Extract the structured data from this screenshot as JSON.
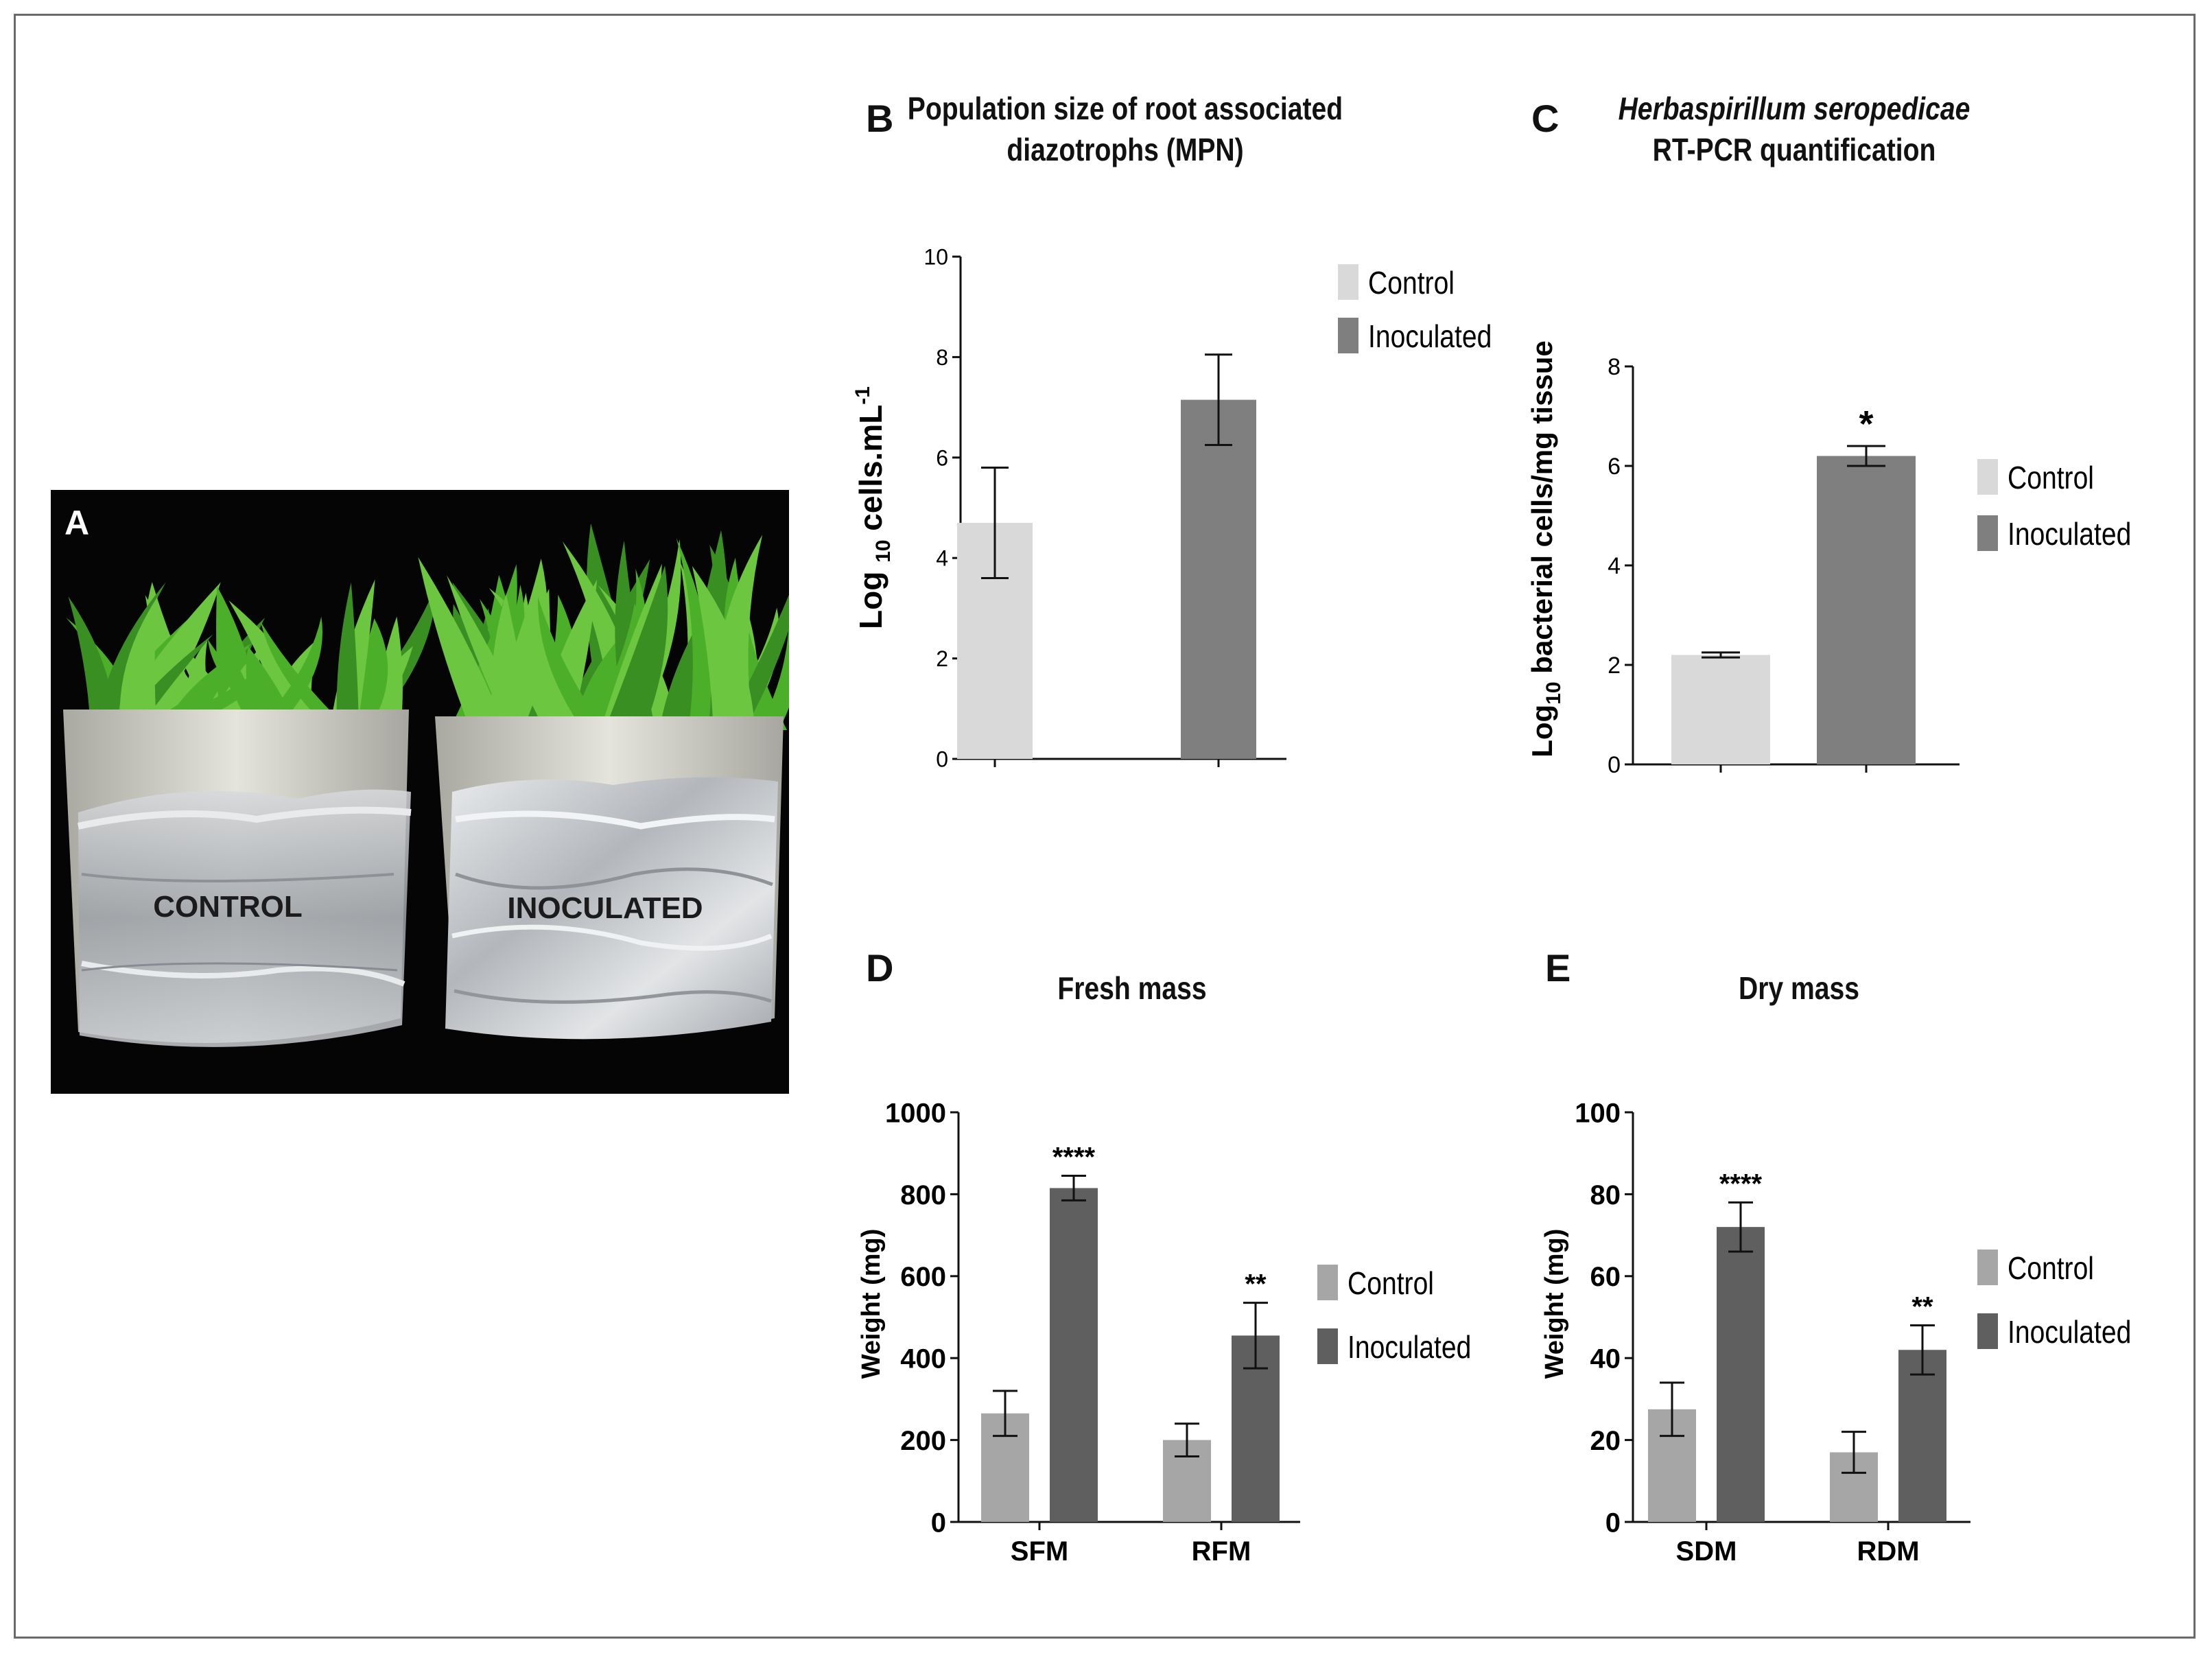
{
  "figure": {
    "panel_a": {
      "letter": "A",
      "pot_left_label": "CONTROL",
      "pot_right_label": "INOCULATED"
    },
    "colors": {
      "light_control": "#d9d9d9",
      "mid_inoculated": "#7f7f7f",
      "control": "#a6a6a6",
      "inoculated": "#5f5f5f",
      "leaf": "#4caf2a",
      "pot": "#d8d8cf",
      "foil": "#b9bcc0"
    }
  },
  "chart_data": [
    {
      "panel": "B",
      "type": "bar",
      "title_line1": "Population size of root associated",
      "title_line2": "diazotrophs (MPN)",
      "ylabel": "Log 10 cells.mL-1",
      "ylabel_parts": {
        "a": "Log ",
        "sub": "10",
        "b": " cells.mL",
        "sup": "-1"
      },
      "categories": [
        ""
      ],
      "series": [
        {
          "name": "Control",
          "values": [
            4.7
          ],
          "errors": [
            1.1
          ]
        },
        {
          "name": "Inoculated",
          "values": [
            7.15
          ],
          "errors": [
            0.9
          ]
        }
      ],
      "ylim": [
        0,
        10
      ],
      "yticks": [
        0,
        2,
        4,
        6,
        8,
        10
      ],
      "annotations": [],
      "legend": [
        "Control",
        "Inoculated"
      ],
      "legend_position": "top-right"
    },
    {
      "panel": "C",
      "type": "bar",
      "title_italic": "Herbaspirillum seropedicae",
      "title_line2": "RT-PCR quantification",
      "ylabel": "Log10 bacterial cells/mg tissue",
      "ylabel_parts": {
        "a": "Log",
        "sub": "10",
        "b": " bacterial cells/mg tissue",
        "sup": ""
      },
      "categories": [
        ""
      ],
      "series": [
        {
          "name": "Control",
          "values": [
            2.2
          ],
          "errors": [
            0.05
          ]
        },
        {
          "name": "Inoculated",
          "values": [
            6.2
          ],
          "errors": [
            0.2
          ]
        }
      ],
      "ylim": [
        0,
        8
      ],
      "yticks": [
        0,
        2,
        4,
        6,
        8
      ],
      "annotations": [
        "",
        "*"
      ],
      "legend": [
        "Control",
        "Inoculated"
      ],
      "legend_position": "right"
    },
    {
      "panel": "D",
      "type": "bar",
      "title": "Fresh mass",
      "ylabel": "Weight (mg)",
      "categories": [
        "SFM",
        "RFM"
      ],
      "series": [
        {
          "name": "Control",
          "values": [
            265,
            200
          ],
          "errors": [
            55,
            40
          ]
        },
        {
          "name": "Inoculated",
          "values": [
            815,
            455
          ],
          "errors": [
            30,
            80
          ]
        }
      ],
      "ylim": [
        0,
        1000
      ],
      "yticks": [
        0,
        200,
        400,
        600,
        800,
        1000
      ],
      "annotations": [
        "****",
        "**"
      ],
      "legend": [
        "Control",
        "Inoculated"
      ],
      "legend_position": "right"
    },
    {
      "panel": "E",
      "type": "bar",
      "title": "Dry mass",
      "ylabel": "Weight (mg)",
      "categories": [
        "SDM",
        "RDM"
      ],
      "series": [
        {
          "name": "Control",
          "values": [
            27.5,
            17
          ],
          "errors": [
            6.5,
            5
          ]
        },
        {
          "name": "Inoculated",
          "values": [
            72,
            42
          ],
          "errors": [
            6,
            6
          ]
        }
      ],
      "ylim": [
        0,
        100
      ],
      "yticks": [
        0,
        20,
        40,
        60,
        80,
        100
      ],
      "annotations": [
        "****",
        "**"
      ],
      "legend": [
        "Control",
        "Inoculated"
      ],
      "legend_position": "right"
    }
  ]
}
